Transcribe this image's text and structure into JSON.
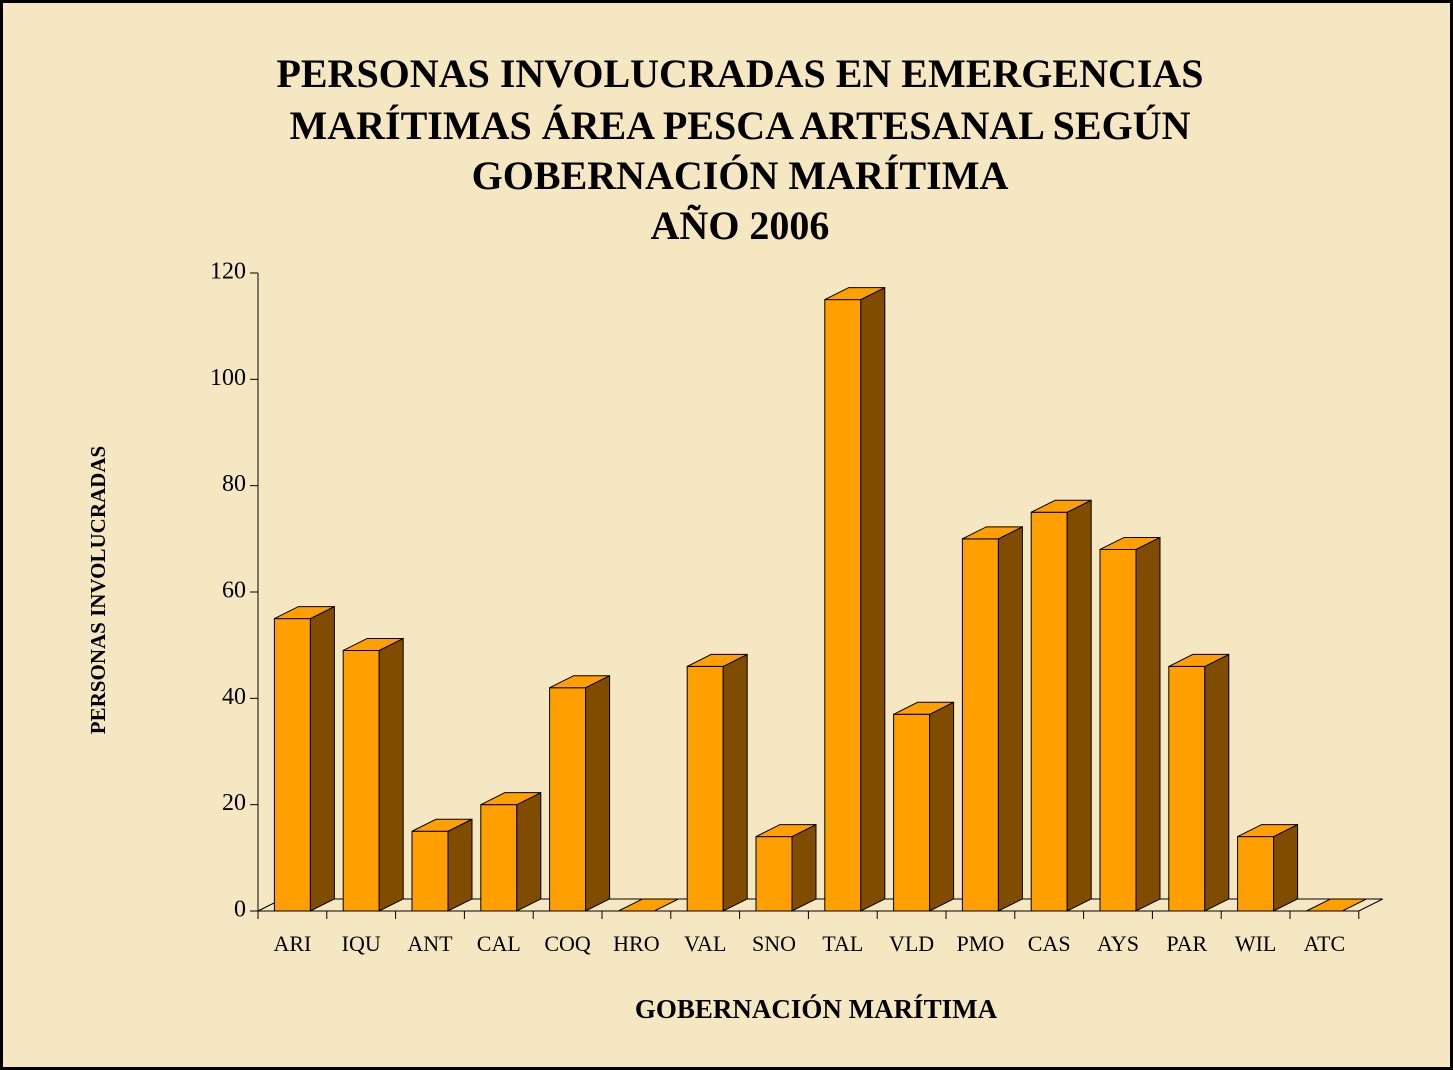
{
  "chart_data": {
    "type": "bar3d",
    "title": [
      "PERSONAS INVOLUCRADAS EN EMERGENCIAS",
      "MARÍTIMAS ÁREA PESCA ARTESANAL SEGÚN",
      "GOBERNACIÓN MARÍTIMA",
      "AÑO 2006"
    ],
    "x_label": "GOBERNACIÓN MARÍTIMA",
    "y_label": "PERSONAS INVOLUCRADAS",
    "categories": [
      "ARI",
      "IQU",
      "ANT",
      "CAL",
      "COQ",
      "HRO",
      "VAL",
      "SNO",
      "TAL",
      "VLD",
      "PMO",
      "CAS",
      "AYS",
      "PAR",
      "WIL",
      "ATC"
    ],
    "values": [
      55,
      49,
      15,
      20,
      42,
      0,
      46,
      14,
      115,
      37,
      70,
      75,
      68,
      46,
      14,
      0
    ],
    "color": "#ff9f00",
    "side_color": "#7f4c00",
    "ylim": [
      0,
      120
    ],
    "yticks": [
      0,
      20,
      40,
      60,
      80,
      100,
      120
    ],
    "grid": false
  }
}
